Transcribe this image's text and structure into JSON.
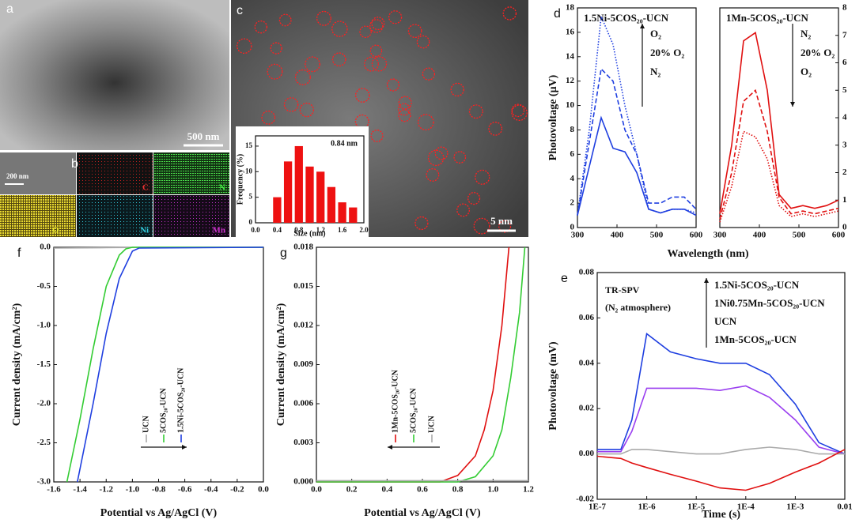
{
  "images": {
    "a": {
      "letter": "a",
      "scale": "500 nm"
    },
    "b": {
      "letter": "b",
      "scale": "200 nm",
      "elements": [
        "C",
        "N",
        "O",
        "Ni",
        "Mn"
      ]
    },
    "c": {
      "letter": "c",
      "scale": "5 nm"
    }
  },
  "chart_data": [
    {
      "type": "bar",
      "xlabel": "Size (nm)",
      "ylabel": "Frequency (%)",
      "annotation": "0.84 nm",
      "color": "#ee1111",
      "x": [
        0.4,
        0.6,
        0.8,
        1.0,
        1.2,
        1.4,
        1.6,
        1.8
      ],
      "values": [
        5,
        12,
        15,
        11,
        10,
        7,
        4,
        3
      ],
      "xlim": [
        0,
        2
      ],
      "xticks": [
        {
          "value": 0,
          "label": "0.0"
        },
        0.4,
        0.8,
        1.2,
        1.6,
        {
          "value": 2,
          "label": "2.0"
        }
      ],
      "ylim": [
        0,
        17
      ],
      "yticks": [
        0,
        5,
        10,
        15
      ]
    },
    {
      "type": "line",
      "panel": "d",
      "title": "1.5Ni-5COS₂₀-UCN",
      "xlabel": "Wavelength (nm)",
      "ylabel": "Photovoltage (μV)",
      "x": [
        300,
        330,
        360,
        390,
        420,
        450,
        480,
        510,
        540,
        570,
        600
      ],
      "xlim": [
        300,
        600
      ],
      "xticks": [
        300,
        400,
        500,
        600
      ],
      "ylim": [
        0,
        18
      ],
      "yticks": [
        0,
        2,
        4,
        6,
        8,
        10,
        12,
        14,
        16,
        18
      ],
      "legend_arrow": "up",
      "series": [
        {
          "name": "O₂",
          "color": "#1f3fe0",
          "dash": "dotted",
          "values": [
            1,
            8,
            17.3,
            15,
            10,
            6,
            1.5,
            1.2,
            1.5,
            1.5,
            1.2
          ]
        },
        {
          "name": "20% O₂",
          "color": "#1f3fe0",
          "dash": "dashed",
          "values": [
            1,
            7,
            13,
            12,
            8,
            6,
            2,
            2,
            2.5,
            2.5,
            1.5
          ]
        },
        {
          "name": "N₂",
          "color": "#1f3fe0",
          "dash": "solid",
          "values": [
            1,
            5,
            9,
            6.5,
            6.2,
            4.5,
            1.5,
            1.2,
            1.5,
            1.5,
            1
          ]
        }
      ]
    },
    {
      "type": "line",
      "title": "1Mn-5COS₂₀-UCN",
      "x": [
        300,
        330,
        360,
        390,
        420,
        450,
        480,
        510,
        540,
        570,
        600
      ],
      "xlim": [
        300,
        600
      ],
      "xticks": [
        300,
        400,
        500,
        600
      ],
      "y2lim": [
        0,
        8
      ],
      "y2ticks": [
        0,
        1,
        2,
        3,
        4,
        5,
        6,
        7,
        8
      ],
      "legend_arrow": "down",
      "series": [
        {
          "name": "N₂",
          "color": "#e01010",
          "dash": "solid",
          "axis": "y2",
          "values": [
            0.5,
            3,
            6.8,
            7.1,
            5,
            1.2,
            0.7,
            0.8,
            0.7,
            0.8,
            1
          ]
        },
        {
          "name": "20% O₂",
          "color": "#e01010",
          "dash": "dashed",
          "axis": "y2",
          "values": [
            0.3,
            2,
            4.6,
            5,
            3.5,
            1.1,
            0.5,
            0.6,
            0.5,
            0.6,
            0.7
          ]
        },
        {
          "name": "O₂",
          "color": "#e01010",
          "dash": "dotted",
          "axis": "y2",
          "values": [
            0.2,
            1.5,
            3.5,
            3.3,
            2.5,
            0.8,
            0.4,
            0.5,
            0.4,
            0.5,
            0.6
          ]
        }
      ]
    },
    {
      "type": "line",
      "panel": "e",
      "xlabel": "Time (s)",
      "ylabel": "Photovoltage (mV)",
      "annotations": [
        "TR-SPV",
        "(N₂ atmosphere)"
      ],
      "xlog": true,
      "x": [
        1e-07,
        3e-07,
        5e-07,
        1e-06,
        3e-06,
        1e-05,
        3e-05,
        0.0001,
        0.0003,
        0.001,
        0.003,
        0.01
      ],
      "xlim": [
        1e-07,
        0.01
      ],
      "xticks": [
        {
          "value": 1e-07,
          "label": "1E-7"
        },
        {
          "value": 1e-06,
          "label": "1E-6"
        },
        {
          "value": 1e-05,
          "label": "1E-5"
        },
        {
          "value": 0.0001,
          "label": "1E-4"
        },
        {
          "value": 0.001,
          "label": "1E-3"
        },
        0.01
      ],
      "ylim": [
        -0.02,
        0.08
      ],
      "yticks": [
        -0.02,
        {
          "value": 0,
          "label": "0.00"
        },
        0.02,
        0.04,
        0.06,
        0.08
      ],
      "legend_arrow": "up",
      "series": [
        {
          "name": "1.5Ni-5COS₂₀-UCN",
          "color": "#1f3fe0",
          "dash": "solid",
          "values": [
            0.002,
            0.002,
            0.015,
            0.053,
            0.045,
            0.042,
            0.04,
            0.04,
            0.035,
            0.022,
            0.005,
            0
          ]
        },
        {
          "name": "1Ni0.75Mn-5COS₂₀-UCN",
          "color": "#9a3ff0",
          "dash": "solid",
          "values": [
            0.001,
            0.001,
            0.01,
            0.029,
            0.029,
            0.029,
            0.028,
            0.03,
            0.025,
            0.015,
            0.003,
            0
          ]
        },
        {
          "name": "UCN",
          "color": "#aaaaaa",
          "dash": "solid",
          "values": [
            0,
            0,
            0.002,
            0.002,
            0.001,
            0,
            0,
            0.002,
            0.003,
            0.002,
            0,
            0
          ]
        },
        {
          "name": "1Mn-5COS₂₀-UCN",
          "color": "#e01010",
          "dash": "solid",
          "values": [
            -0.001,
            -0.002,
            -0.004,
            -0.006,
            -0.009,
            -0.012,
            -0.015,
            -0.016,
            -0.013,
            -0.008,
            -0.004,
            0.002
          ]
        }
      ]
    },
    {
      "type": "line",
      "panel": "f",
      "xlabel": "Potential vs Ag/AgCl (V)",
      "ylabel": "Current density (mA/cm²)",
      "legend_arrow": "right",
      "xlim": [
        -1.6,
        0
      ],
      "xticks": [
        -1.6,
        -1.4,
        -1.2,
        {
          "value": -1,
          "label": "-1.0"
        },
        -0.8,
        -0.6,
        -0.4,
        -0.2,
        {
          "value": 0,
          "label": "0.0"
        }
      ],
      "ylim": [
        -3,
        0
      ],
      "yticks": [
        {
          "value": 0,
          "label": "0.0"
        },
        -0.5,
        {
          "value": -1,
          "label": "-1.0"
        },
        -1.5,
        {
          "value": -2,
          "label": "-2.0"
        },
        -2.5,
        {
          "value": -3,
          "label": "-3.0"
        }
      ],
      "series": [
        {
          "name": "UCN",
          "color": "#aaaaaa",
          "dash": "solid",
          "x": [
            -1.6,
            -1.2,
            -0.8,
            -0.4,
            0
          ],
          "values": [
            -0.01,
            -0.005,
            0,
            0,
            0
          ]
        },
        {
          "name": "5COS₂₀-UCN",
          "color": "#33cc33",
          "dash": "solid",
          "x": [
            -1.5,
            -1.4,
            -1.3,
            -1.2,
            -1.1,
            -1.05,
            -1,
            0
          ],
          "values": [
            -3,
            -2.2,
            -1.3,
            -0.5,
            -0.1,
            -0.02,
            0,
            0
          ]
        },
        {
          "name": "1.5Ni-5COS₂₀-UCN",
          "color": "#1f3fe0",
          "dash": "solid",
          "x": [
            -1.42,
            -1.3,
            -1.2,
            -1.1,
            -1,
            -0.95,
            0
          ],
          "values": [
            -3,
            -2,
            -1.1,
            -0.4,
            -0.05,
            -0.01,
            0
          ]
        }
      ]
    },
    {
      "type": "line",
      "panel": "g",
      "xlabel": "Potential vs Ag/AgCl (V)",
      "ylabel": "Current density (mA/cm²)",
      "legend_arrow": "left",
      "xlim": [
        0,
        1.2
      ],
      "xticks": [
        {
          "value": 0,
          "label": "0.0"
        },
        0.2,
        0.4,
        0.6,
        0.8,
        {
          "value": 1,
          "label": "1.0"
        },
        1.2
      ],
      "ylim": [
        0,
        0.018
      ],
      "yticks": [
        {
          "value": 0,
          "label": "0.000"
        },
        0.003,
        0.006,
        0.009,
        0.012,
        0.015,
        0.018
      ],
      "series": [
        {
          "name": "1Mn-5COS₂₀-UCN",
          "color": "#e01010",
          "dash": "solid",
          "x": [
            0,
            0.7,
            0.8,
            0.9,
            0.95,
            1,
            1.05,
            1.09
          ],
          "values": [
            0,
            0,
            0.0005,
            0.002,
            0.004,
            0.007,
            0.012,
            0.018
          ]
        },
        {
          "name": "5COS₂₀-UCN",
          "color": "#33cc33",
          "dash": "solid",
          "x": [
            0,
            0.8,
            0.9,
            1,
            1.05,
            1.1,
            1.15,
            1.18
          ],
          "values": [
            0,
            0,
            0.0004,
            0.002,
            0.004,
            0.008,
            0.013,
            0.018
          ]
        },
        {
          "name": "UCN",
          "color": "#aaaaaa",
          "dash": "solid",
          "x": [
            0,
            0.6,
            1.2
          ],
          "values": [
            0.0001,
            0.0001,
            0.0001
          ]
        }
      ]
    }
  ]
}
